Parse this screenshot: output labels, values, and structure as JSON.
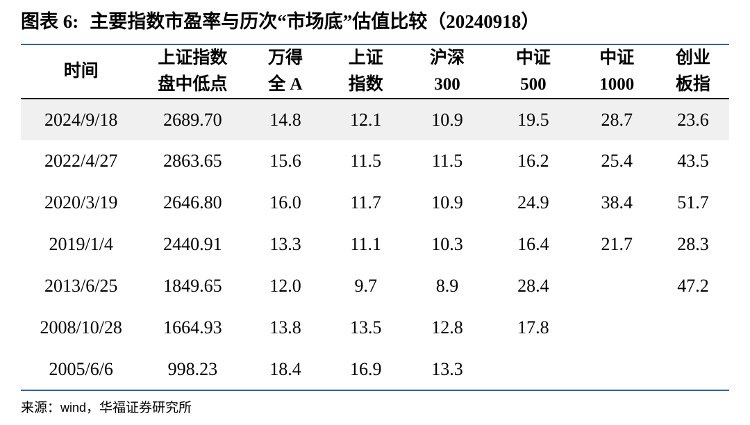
{
  "colors": {
    "accent_blue": "#2e62ad",
    "header_rule": "#1c1c1c",
    "highlight_row_bg": "#f0f0f0",
    "text": "#000000"
  },
  "title": {
    "exhibit_label": "图表 6:",
    "text": "主要指数市盈率与历次“市场底”估值比较（20240918）"
  },
  "chart_data": {
    "type": "table",
    "title": "图表 6: 主要指数市盈率与历次“市场底”估值比较（20240918）",
    "header": [
      {
        "line1": "时间",
        "line2": ""
      },
      {
        "line1": "上证指数",
        "line2": "盘中低点"
      },
      {
        "line1": "万得",
        "line2": "全 A"
      },
      {
        "line1": "上证",
        "line2": "指数"
      },
      {
        "line1": "沪深",
        "line2": "300"
      },
      {
        "line1": "中证",
        "line2": "500"
      },
      {
        "line1": "中证",
        "line2": "1000"
      },
      {
        "line1": "创业",
        "line2": "板指"
      }
    ],
    "columns_flat": [
      "时间",
      "上证指数盘中低点",
      "万得全A",
      "上证指数",
      "沪深300",
      "中证500",
      "中证1000",
      "创业板指"
    ],
    "rows": [
      [
        "2024/9/18",
        "2689.70",
        "14.8",
        "12.1",
        "10.9",
        "19.5",
        "28.7",
        "23.6"
      ],
      [
        "2022/4/27",
        "2863.65",
        "15.6",
        "11.5",
        "11.5",
        "16.2",
        "25.4",
        "43.5"
      ],
      [
        "2020/3/19",
        "2646.80",
        "16.0",
        "11.7",
        "10.9",
        "24.9",
        "38.4",
        "51.7"
      ],
      [
        "2019/1/4",
        "2440.91",
        "13.3",
        "11.1",
        "10.3",
        "16.4",
        "21.7",
        "28.3"
      ],
      [
        "2013/6/25",
        "1849.65",
        "12.0",
        "9.7",
        "8.9",
        "28.4",
        "",
        "47.2"
      ],
      [
        "2008/10/28",
        "1664.93",
        "13.8",
        "13.5",
        "12.8",
        "17.8",
        "",
        ""
      ],
      [
        "2005/6/6",
        "998.23",
        "18.4",
        "16.9",
        "13.3",
        "",
        "",
        ""
      ]
    ],
    "highlighted_row_index": 0,
    "layout": {
      "grid": "horizontal rules only",
      "header_bold": true,
      "first_row_highlighted": true
    }
  },
  "footer": {
    "source_prefix": "来源：",
    "source_wind": "wind",
    "source_rest": "，华福证券研究所"
  }
}
